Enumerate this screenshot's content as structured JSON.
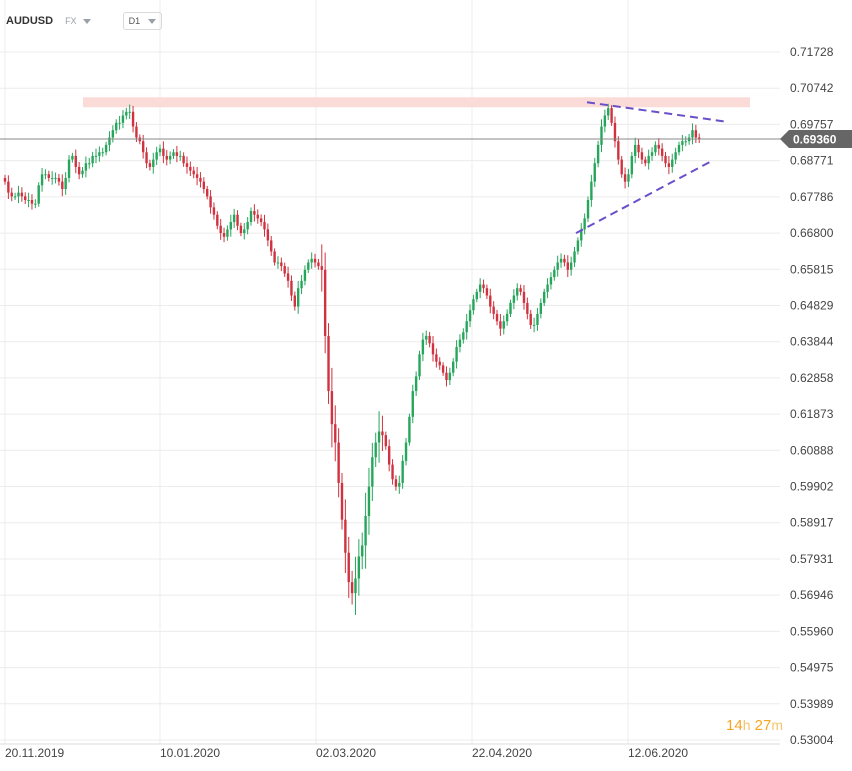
{
  "toolbar": {
    "symbol": "AUDUSD",
    "market": "FX",
    "timeframe": "D1"
  },
  "timer": {
    "hours": "14",
    "hours_unit": "h",
    "minutes": "27",
    "minutes_unit": "m"
  },
  "colors": {
    "up": "#26a65b",
    "down": "#d0323f",
    "resistance_zone": "#fadbd8",
    "trendline": "#6a4fc9",
    "price_line": "#888888",
    "price_badge": "#666666",
    "timer": "#f5a623"
  },
  "chart_data": {
    "type": "candlestick",
    "title": "",
    "xlabel": "",
    "ylabel": "",
    "ylim": [
      0.53004,
      0.71728
    ],
    "yticks": [
      "0.71728",
      "0.70742",
      "0.69757",
      "0.68771",
      "0.67786",
      "0.66800",
      "0.65815",
      "0.64829",
      "0.63844",
      "0.62858",
      "0.61873",
      "0.60888",
      "0.59902",
      "0.58917",
      "0.57931",
      "0.56946",
      "0.55960",
      "0.54975",
      "0.53989",
      "0.53004"
    ],
    "xticks": [
      "20.11.2019",
      "10.01.2020",
      "02.03.2020",
      "22.04.2020",
      "12.06.2020"
    ],
    "grid": true,
    "current_price": "0.69360",
    "resistance_zone": [
      0.7026,
      0.7036
    ],
    "closes": [
      0.682,
      0.679,
      0.678,
      0.678,
      0.679,
      0.678,
      0.677,
      0.677,
      0.676,
      0.676,
      0.681,
      0.684,
      0.684,
      0.683,
      0.683,
      0.683,
      0.682,
      0.68,
      0.683,
      0.688,
      0.689,
      0.686,
      0.684,
      0.685,
      0.687,
      0.687,
      0.689,
      0.689,
      0.69,
      0.69,
      0.692,
      0.694,
      0.696,
      0.698,
      0.698,
      0.7,
      0.701,
      0.701,
      0.697,
      0.694,
      0.693,
      0.69,
      0.687,
      0.686,
      0.688,
      0.69,
      0.691,
      0.689,
      0.688,
      0.689,
      0.69,
      0.689,
      0.689,
      0.687,
      0.686,
      0.685,
      0.684,
      0.683,
      0.682,
      0.68,
      0.678,
      0.675,
      0.673,
      0.67,
      0.668,
      0.667,
      0.669,
      0.671,
      0.673,
      0.67,
      0.668,
      0.669,
      0.671,
      0.674,
      0.673,
      0.672,
      0.671,
      0.669,
      0.666,
      0.663,
      0.66,
      0.66,
      0.659,
      0.657,
      0.655,
      0.651,
      0.648,
      0.653,
      0.655,
      0.658,
      0.66,
      0.661,
      0.66,
      0.659,
      0.658,
      0.64,
      0.625,
      0.616,
      0.611,
      0.6,
      0.59,
      0.581,
      0.573,
      0.57,
      0.574,
      0.58,
      0.583,
      0.591,
      0.599,
      0.607,
      0.611,
      0.614,
      0.613,
      0.61,
      0.605,
      0.601,
      0.599,
      0.6,
      0.606,
      0.611,
      0.618,
      0.625,
      0.629,
      0.635,
      0.639,
      0.64,
      0.638,
      0.635,
      0.633,
      0.632,
      0.63,
      0.628,
      0.63,
      0.633,
      0.637,
      0.639,
      0.641,
      0.644,
      0.647,
      0.65,
      0.652,
      0.654,
      0.653,
      0.651,
      0.648,
      0.646,
      0.644,
      0.642,
      0.644,
      0.646,
      0.649,
      0.651,
      0.653,
      0.652,
      0.649,
      0.646,
      0.643,
      0.643,
      0.646,
      0.649,
      0.652,
      0.654,
      0.656,
      0.658,
      0.66,
      0.661,
      0.66,
      0.658,
      0.66,
      0.663,
      0.666,
      0.669,
      0.672,
      0.677,
      0.682,
      0.687,
      0.692,
      0.697,
      0.7,
      0.702,
      0.698,
      0.693,
      0.688,
      0.684,
      0.682,
      0.684,
      0.689,
      0.692,
      0.69,
      0.688,
      0.687,
      0.689,
      0.69,
      0.692,
      0.691,
      0.689,
      0.687,
      0.686,
      0.688,
      0.69,
      0.692,
      0.693,
      0.693,
      0.694,
      0.696,
      0.694,
      0.6936
    ]
  }
}
